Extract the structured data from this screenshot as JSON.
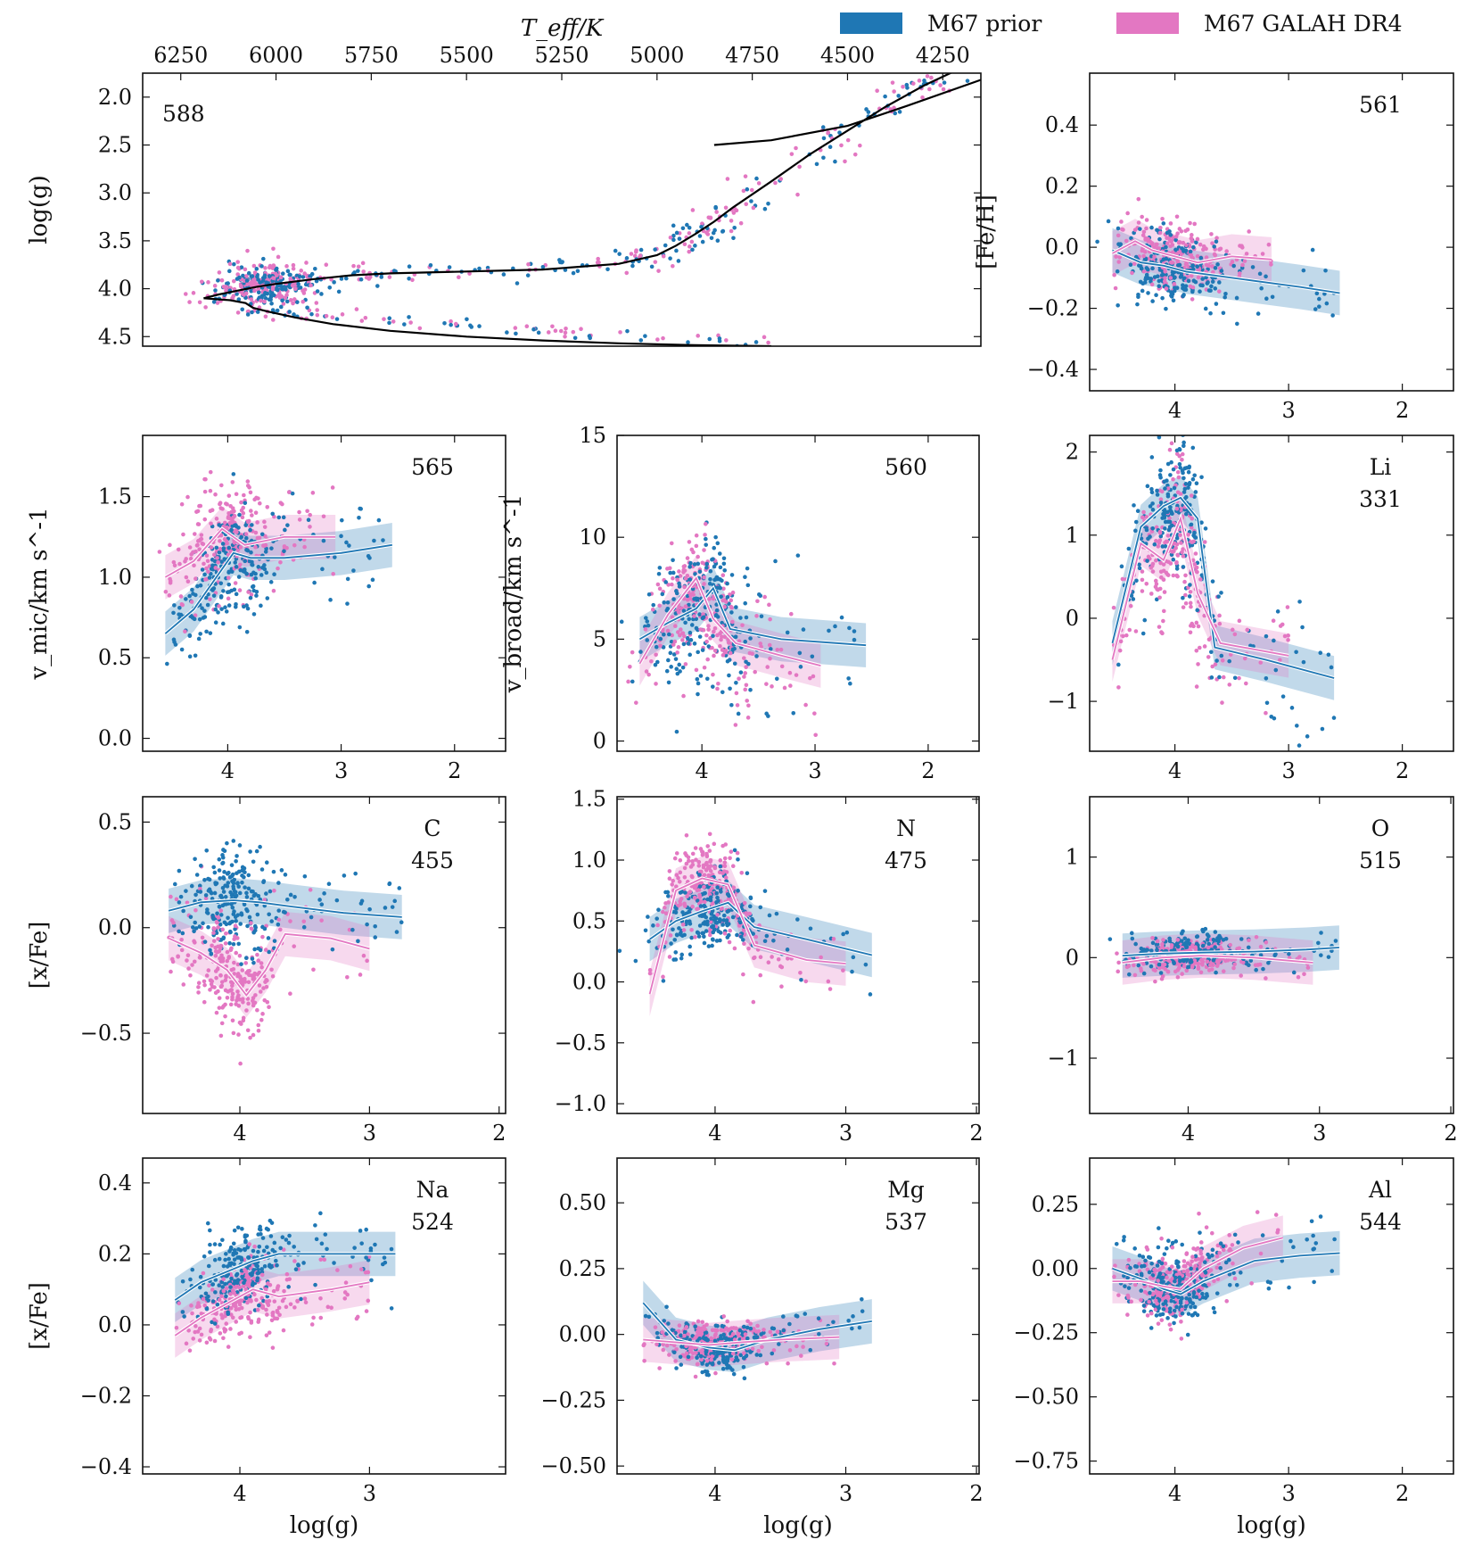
{
  "legend": {
    "placement": "top-right",
    "items": [
      {
        "label": "M67 prior",
        "color": "#1f77b4"
      },
      {
        "label": "M67 GALAH DR4",
        "color": "#e377c2"
      }
    ]
  },
  "colors": {
    "prior": "#1f77b4",
    "galah": "#e377c2",
    "isochrone": "#000000"
  },
  "chart_data": [
    {
      "type": "scatter",
      "panel": "hr",
      "annotation": "588",
      "xlabel": "",
      "ylabel": "log(g)",
      "top_xlabel": "T_eff/K",
      "xlim": [
        6350,
        4150
      ],
      "ylim": [
        4.6,
        1.75
      ],
      "xticks": [
        6250,
        6000,
        5750,
        5500,
        5250,
        5000,
        4750,
        4500,
        4250
      ],
      "yticks": [
        2.0,
        2.5,
        3.0,
        3.5,
        4.0,
        4.5
      ],
      "ytick_labels": [
        "2.0",
        "2.5",
        "3.0",
        "3.5",
        "4.0",
        "4.5"
      ],
      "isochrone": [
        [
          6190,
          4.1
        ],
        [
          6150,
          4.06
        ],
        [
          6100,
          4.02
        ],
        [
          6050,
          3.98
        ],
        [
          6000,
          3.95
        ],
        [
          5900,
          3.9
        ],
        [
          5800,
          3.86
        ],
        [
          5700,
          3.84
        ],
        [
          5500,
          3.82
        ],
        [
          5300,
          3.8
        ],
        [
          5100,
          3.74
        ],
        [
          5000,
          3.65
        ],
        [
          4950,
          3.55
        ],
        [
          4900,
          3.43
        ],
        [
          4850,
          3.3
        ],
        [
          4800,
          3.15
        ],
        [
          4700,
          2.88
        ],
        [
          4600,
          2.6
        ],
        [
          4500,
          2.35
        ],
        [
          4400,
          2.1
        ],
        [
          4300,
          1.88
        ],
        [
          4150,
          1.6
        ]
      ],
      "isochrone_lower": [
        [
          6190,
          4.1
        ],
        [
          6120,
          4.12
        ],
        [
          6080,
          4.15
        ],
        [
          6060,
          4.2
        ],
        [
          6020,
          4.24
        ],
        [
          5950,
          4.3
        ],
        [
          5850,
          4.37
        ],
        [
          5700,
          4.44
        ],
        [
          5500,
          4.5
        ],
        [
          5300,
          4.54
        ],
        [
          5100,
          4.57
        ],
        [
          4900,
          4.59
        ],
        [
          4700,
          4.6
        ]
      ]
    },
    {
      "type": "scatter",
      "panel": "feh",
      "annotation": "561",
      "ylabel": "[Fe/H]",
      "xlabel": "",
      "xlim": [
        4.75,
        1.55
      ],
      "ylim": [
        -0.47,
        0.57
      ],
      "xticks": [
        4,
        3,
        2
      ],
      "yticks": [
        0.4,
        0.2,
        0.0,
        -0.2,
        -0.4
      ],
      "ytick_labels": [
        "0.4",
        "0.2",
        "0.0",
        "−0.2",
        "−0.4"
      ],
      "prior_median": [
        [
          4.55,
          -0.01
        ],
        [
          4.3,
          -0.05
        ],
        [
          4.1,
          -0.06
        ],
        [
          3.9,
          -0.08
        ],
        [
          3.7,
          -0.09
        ],
        [
          3.3,
          -0.11
        ],
        [
          2.9,
          -0.13
        ],
        [
          2.55,
          -0.15
        ]
      ],
      "galah_median": [
        [
          4.55,
          -0.02
        ],
        [
          4.35,
          0.02
        ],
        [
          4.2,
          -0.01
        ],
        [
          4.0,
          -0.03
        ],
        [
          3.8,
          -0.05
        ],
        [
          3.5,
          -0.03
        ],
        [
          3.15,
          -0.04
        ]
      ],
      "center": [
        4.0,
        -0.05
      ],
      "spread": [
        0.35,
        0.08
      ]
    },
    {
      "type": "scatter",
      "panel": "vmic",
      "annotation": "565",
      "ylabel": "v_mic/km s^-1",
      "xlabel": "",
      "xlim": [
        4.75,
        1.55
      ],
      "ylim": [
        -0.08,
        1.88
      ],
      "xticks": [
        4,
        3,
        2
      ],
      "yticks": [
        0.0,
        0.5,
        1.0,
        1.5
      ],
      "ytick_labels": [
        "0.0",
        "0.5",
        "1.0",
        "1.5"
      ],
      "prior_median": [
        [
          4.55,
          0.65
        ],
        [
          4.3,
          0.8
        ],
        [
          4.1,
          1.0
        ],
        [
          3.95,
          1.15
        ],
        [
          3.8,
          1.12
        ],
        [
          3.5,
          1.12
        ],
        [
          3.0,
          1.15
        ],
        [
          2.55,
          1.2
        ]
      ],
      "galah_median": [
        [
          4.55,
          1.0
        ],
        [
          4.3,
          1.1
        ],
        [
          4.05,
          1.3
        ],
        [
          3.85,
          1.2
        ],
        [
          3.5,
          1.25
        ],
        [
          3.05,
          1.25
        ]
      ],
      "center": [
        4.0,
        1.05
      ],
      "spread": [
        0.35,
        0.25
      ]
    },
    {
      "type": "scatter",
      "panel": "vbroad",
      "annotation": "560",
      "ylabel": "v_broad/km s^-1",
      "xlabel": "",
      "xlim": [
        4.75,
        1.55
      ],
      "ylim": [
        -0.5,
        15.0
      ],
      "xticks": [
        4,
        3,
        2
      ],
      "yticks": [
        0,
        5,
        10,
        15
      ],
      "ytick_labels": [
        "0",
        "5",
        "10",
        "15"
      ],
      "prior_median": [
        [
          4.55,
          5.0
        ],
        [
          4.3,
          5.8
        ],
        [
          4.05,
          6.5
        ],
        [
          3.9,
          7.5
        ],
        [
          3.75,
          5.5
        ],
        [
          3.3,
          5.0
        ],
        [
          2.55,
          4.7
        ]
      ],
      "galah_median": [
        [
          4.55,
          3.8
        ],
        [
          4.3,
          6.2
        ],
        [
          4.05,
          8.0
        ],
        [
          3.9,
          6.0
        ],
        [
          3.7,
          4.8
        ],
        [
          3.3,
          4.2
        ],
        [
          2.95,
          3.7
        ]
      ],
      "center": [
        4.0,
        6.0
      ],
      "spread": [
        0.4,
        2.2
      ]
    },
    {
      "type": "scatter",
      "panel": "li",
      "annotation": "Li\n331",
      "ylabel": "",
      "xlabel": "",
      "xlim": [
        4.75,
        1.55
      ],
      "ylim": [
        -1.6,
        2.2
      ],
      "xticks": [
        4,
        3,
        2
      ],
      "yticks": [
        2,
        1,
        0,
        -1
      ],
      "ytick_labels": [
        "2",
        "1",
        "0",
        "−1"
      ],
      "prior_median": [
        [
          4.55,
          -0.3
        ],
        [
          4.3,
          1.1
        ],
        [
          4.1,
          1.35
        ],
        [
          3.95,
          1.45
        ],
        [
          3.8,
          1.2
        ],
        [
          3.65,
          -0.35
        ],
        [
          3.2,
          -0.5
        ],
        [
          2.6,
          -0.72
        ]
      ],
      "galah_median": [
        [
          4.55,
          -0.5
        ],
        [
          4.3,
          0.9
        ],
        [
          4.1,
          0.7
        ],
        [
          3.95,
          1.2
        ],
        [
          3.8,
          0.3
        ],
        [
          3.6,
          -0.3
        ],
        [
          3.0,
          -0.45
        ]
      ],
      "center": [
        4.0,
        1.0
      ],
      "spread": [
        0.3,
        0.6
      ]
    },
    {
      "type": "scatter",
      "panel": "c",
      "annotation": "C\n455",
      "ylabel": "[x/Fe]",
      "xlabel": "",
      "xlim": [
        4.75,
        1.95
      ],
      "ylim": [
        -0.88,
        0.62
      ],
      "xticks": [
        4,
        3,
        2
      ],
      "yticks": [
        0.5,
        0.0,
        -0.5
      ],
      "ytick_labels": [
        "0.5",
        "0.0",
        "−0.5"
      ],
      "prior_median": [
        [
          4.55,
          0.08
        ],
        [
          4.3,
          0.12
        ],
        [
          4.05,
          0.13
        ],
        [
          3.85,
          0.12
        ],
        [
          3.6,
          0.1
        ],
        [
          3.2,
          0.07
        ],
        [
          2.75,
          0.05
        ]
      ],
      "galah_median": [
        [
          4.55,
          -0.05
        ],
        [
          4.3,
          -0.12
        ],
        [
          4.1,
          -0.2
        ],
        [
          3.95,
          -0.32
        ],
        [
          3.8,
          -0.2
        ],
        [
          3.65,
          -0.03
        ],
        [
          3.3,
          -0.05
        ],
        [
          3.0,
          -0.1
        ]
      ],
      "center": [
        4.05,
        0.0
      ],
      "spread": [
        0.3,
        0.2
      ]
    },
    {
      "type": "scatter",
      "panel": "n",
      "annotation": "N\n475",
      "ylabel": "",
      "xlabel": "",
      "xlim": [
        4.75,
        1.98
      ],
      "ylim": [
        -1.08,
        1.52
      ],
      "xticks": [
        4,
        3,
        2
      ],
      "yticks": [
        1.5,
        1.0,
        0.5,
        0.0,
        -0.5,
        -1.0
      ],
      "ytick_labels": [
        "1.5",
        "1.0",
        "0.5",
        "0.0",
        "−0.5",
        "−1.0"
      ],
      "prior_median": [
        [
          4.5,
          0.35
        ],
        [
          4.3,
          0.5
        ],
        [
          4.1,
          0.58
        ],
        [
          3.9,
          0.65
        ],
        [
          3.7,
          0.45
        ],
        [
          3.3,
          0.35
        ],
        [
          2.8,
          0.22
        ]
      ],
      "galah_median": [
        [
          4.5,
          -0.1
        ],
        [
          4.3,
          0.75
        ],
        [
          4.1,
          0.85
        ],
        [
          3.9,
          0.8
        ],
        [
          3.7,
          0.3
        ],
        [
          3.3,
          0.18
        ],
        [
          3.0,
          0.15
        ]
      ],
      "center": [
        4.05,
        0.6
      ],
      "spread": [
        0.3,
        0.25
      ]
    },
    {
      "type": "scatter",
      "panel": "o",
      "annotation": "O\n515",
      "ylabel": "",
      "xlabel": "",
      "xlim": [
        4.75,
        1.98
      ],
      "ylim": [
        -1.55,
        1.6
      ],
      "xticks": [
        4,
        3,
        2
      ],
      "yticks": [
        1,
        0,
        -1
      ],
      "ytick_labels": [
        "1",
        "0",
        "−1"
      ],
      "prior_median": [
        [
          4.5,
          0.02
        ],
        [
          4.2,
          0.04
        ],
        [
          3.9,
          0.05
        ],
        [
          3.5,
          0.06
        ],
        [
          3.1,
          0.08
        ],
        [
          2.85,
          0.1
        ]
      ],
      "galah_median": [
        [
          4.5,
          -0.05
        ],
        [
          4.2,
          0.0
        ],
        [
          3.9,
          0.02
        ],
        [
          3.5,
          0.0
        ],
        [
          3.05,
          -0.05
        ]
      ],
      "center": [
        4.0,
        0.02
      ],
      "spread": [
        0.35,
        0.12
      ]
    },
    {
      "type": "scatter",
      "panel": "na",
      "annotation": "Na\n524",
      "ylabel": "[x/Fe]",
      "xlabel": "log(g)",
      "xlim": [
        4.75,
        1.95
      ],
      "ylim": [
        -0.42,
        0.47
      ],
      "xticks": [
        4,
        3
      ],
      "yticks": [
        0.4,
        0.2,
        0.0,
        -0.2,
        -0.4
      ],
      "ytick_labels": [
        "0.4",
        "0.2",
        "0.0",
        "−0.2",
        "−0.4"
      ],
      "prior_median": [
        [
          4.5,
          0.07
        ],
        [
          4.3,
          0.12
        ],
        [
          4.1,
          0.15
        ],
        [
          3.9,
          0.18
        ],
        [
          3.7,
          0.2
        ],
        [
          3.2,
          0.2
        ],
        [
          2.8,
          0.2
        ]
      ],
      "galah_median": [
        [
          4.5,
          -0.03
        ],
        [
          4.3,
          0.02
        ],
        [
          4.1,
          0.06
        ],
        [
          3.9,
          0.1
        ],
        [
          3.7,
          0.08
        ],
        [
          3.3,
          0.1
        ],
        [
          3.0,
          0.12
        ]
      ],
      "center": [
        4.0,
        0.12
      ],
      "spread": [
        0.3,
        0.08
      ]
    },
    {
      "type": "scatter",
      "panel": "mg",
      "annotation": "Mg\n537",
      "ylabel": "",
      "xlabel": "log(g)",
      "xlim": [
        4.75,
        1.98
      ],
      "ylim": [
        -0.53,
        0.67
      ],
      "xticks": [
        4,
        3,
        2
      ],
      "yticks": [
        0.5,
        0.25,
        0.0,
        -0.25,
        -0.5
      ],
      "ytick_labels": [
        "0.50",
        "0.25",
        "0.00",
        "−0.25",
        "−0.50"
      ],
      "prior_median": [
        [
          4.55,
          0.12
        ],
        [
          4.3,
          -0.02
        ],
        [
          4.05,
          -0.05
        ],
        [
          3.85,
          -0.06
        ],
        [
          3.6,
          -0.02
        ],
        [
          3.2,
          0.02
        ],
        [
          2.8,
          0.05
        ]
      ],
      "galah_median": [
        [
          4.55,
          -0.02
        ],
        [
          4.3,
          -0.03
        ],
        [
          4.05,
          -0.04
        ],
        [
          3.8,
          -0.03
        ],
        [
          3.5,
          -0.02
        ],
        [
          3.05,
          -0.01
        ]
      ],
      "center": [
        4.0,
        -0.04
      ],
      "spread": [
        0.3,
        0.06
      ]
    },
    {
      "type": "scatter",
      "panel": "al",
      "annotation": "Al\n544",
      "ylabel": "",
      "xlabel": "log(g)",
      "xlim": [
        4.75,
        1.55
      ],
      "ylim": [
        -0.8,
        0.43
      ],
      "xticks": [
        4,
        3,
        2
      ],
      "yticks": [
        0.25,
        0.0,
        -0.25,
        -0.5,
        -0.75
      ],
      "ytick_labels": [
        "0.25",
        "0.00",
        "−0.25",
        "−0.50",
        "−0.75"
      ],
      "prior_median": [
        [
          4.55,
          0.0
        ],
        [
          4.3,
          -0.04
        ],
        [
          4.1,
          -0.08
        ],
        [
          3.95,
          -0.1
        ],
        [
          3.75,
          -0.05
        ],
        [
          3.3,
          0.03
        ],
        [
          2.9,
          0.05
        ],
        [
          2.55,
          0.06
        ]
      ],
      "galah_median": [
        [
          4.55,
          -0.05
        ],
        [
          4.3,
          -0.05
        ],
        [
          4.1,
          -0.07
        ],
        [
          3.95,
          -0.08
        ],
        [
          3.75,
          0.0
        ],
        [
          3.4,
          0.08
        ],
        [
          3.05,
          0.12
        ]
      ],
      "center": [
        4.0,
        -0.05
      ],
      "spread": [
        0.3,
        0.1
      ]
    }
  ]
}
